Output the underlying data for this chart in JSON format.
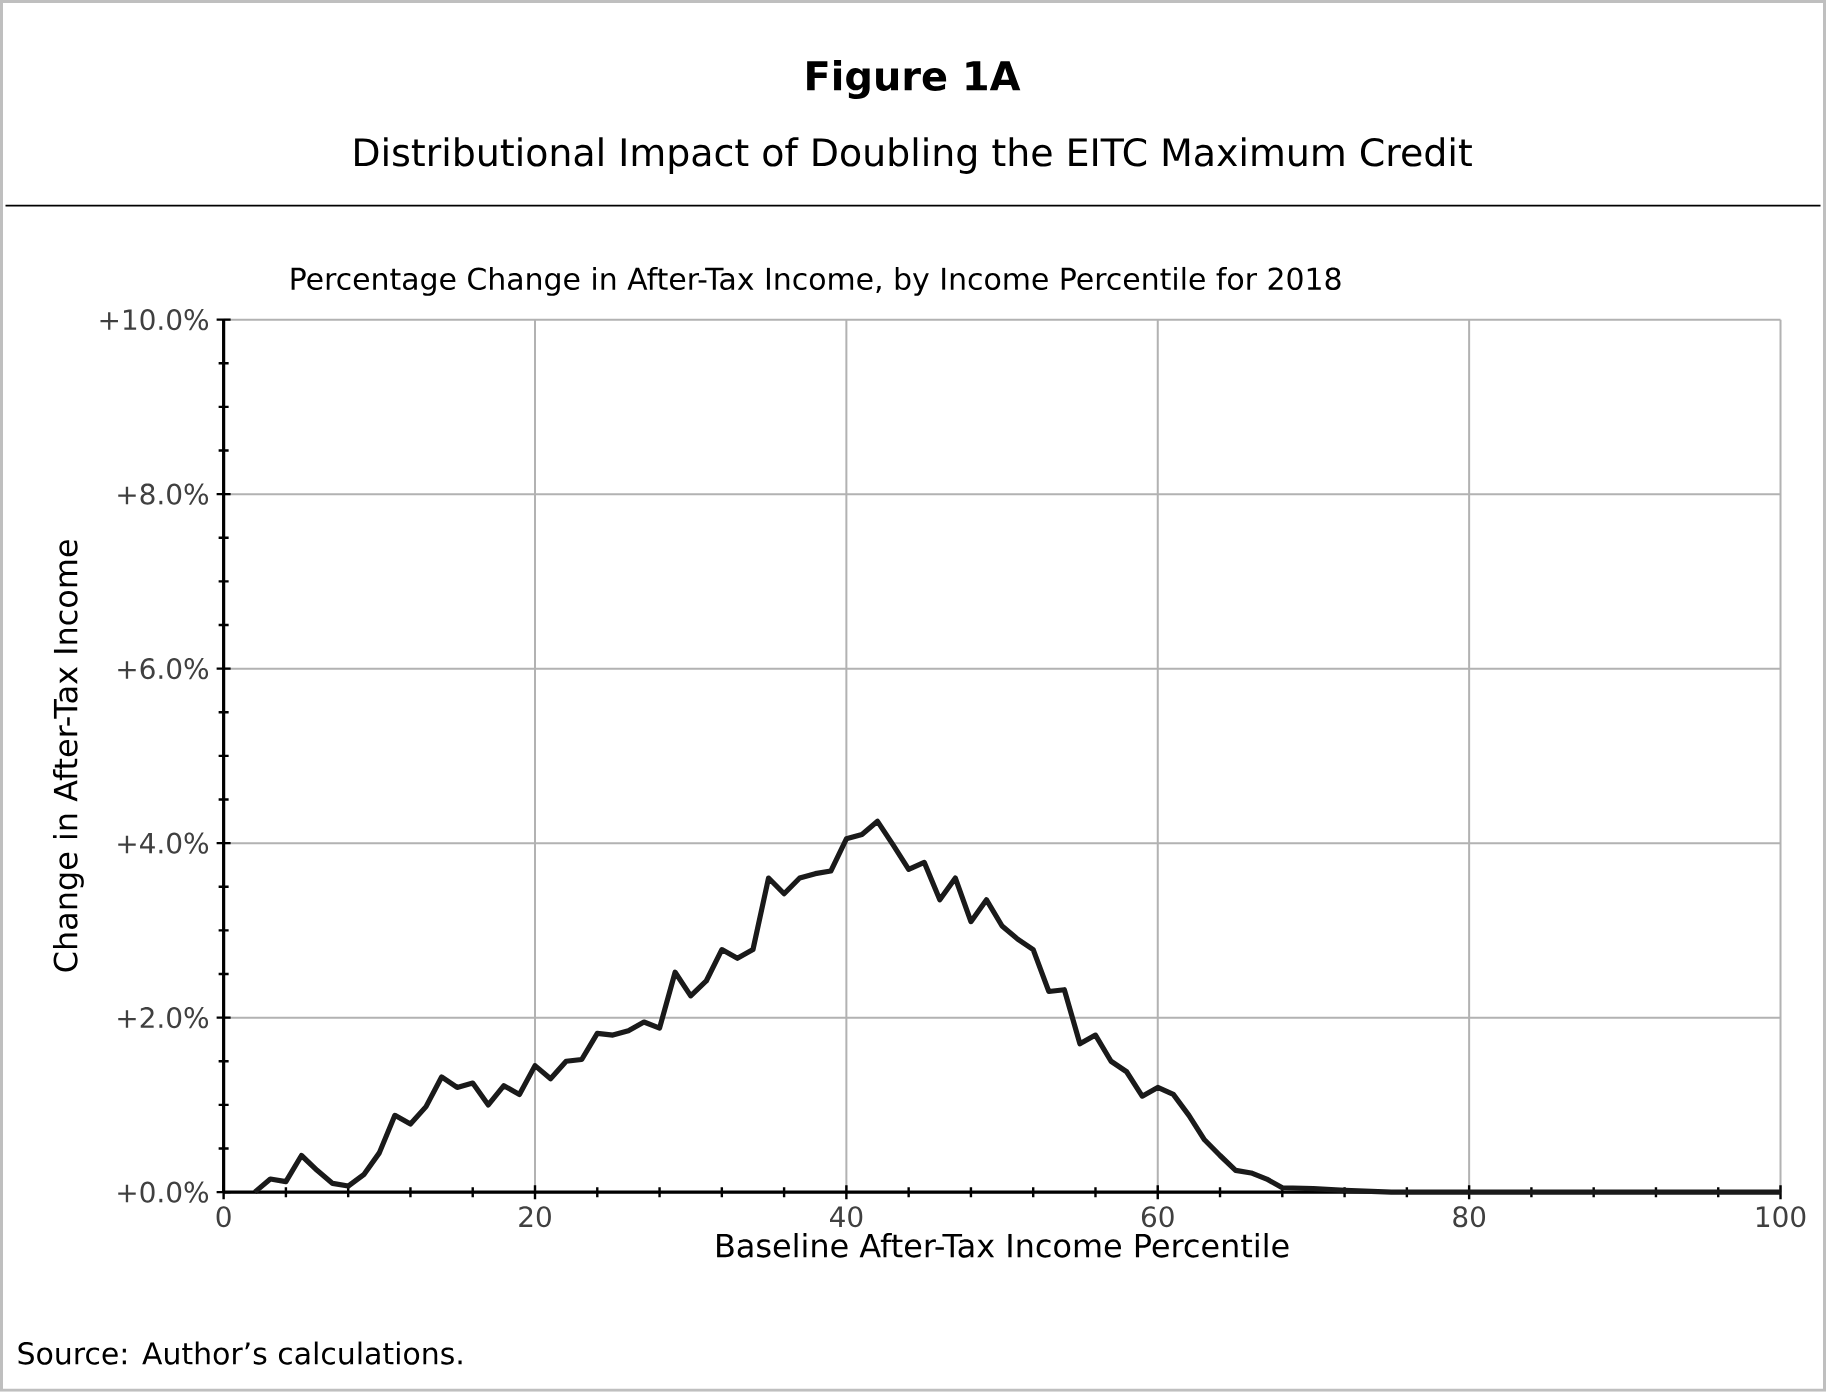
{
  "chart_data": {
    "type": "line",
    "title": "Figure 1A",
    "subtitle": "Distributional Impact of Doubling the EITC Maximum Credit",
    "annotations": [
      "Percentage Change in After-Tax Income, by Income Percentile for 2018",
      "Source: Author’s calculations."
    ],
    "xlabel": "Baseline After-Tax Income Percentile",
    "ylabel": "Change in After-Tax Income",
    "x": [
      2,
      3,
      4,
      5,
      6,
      7,
      8,
      9,
      10,
      11,
      12,
      13,
      14,
      15,
      16,
      17,
      18,
      19,
      20,
      21,
      22,
      23,
      24,
      25,
      26,
      27,
      28,
      29,
      30,
      31,
      32,
      33,
      34,
      35,
      36,
      37,
      38,
      39,
      40,
      41,
      42,
      43,
      44,
      45,
      46,
      47,
      48,
      49,
      50,
      51,
      52,
      53,
      54,
      55,
      56,
      57,
      58,
      59,
      60,
      61,
      62,
      63,
      64,
      65,
      66,
      67,
      68,
      70,
      72,
      75,
      80,
      90,
      100
    ],
    "series": [
      {
        "color": "#1a1a1a",
        "line_style": "solid",
        "values": [
          0.0,
          0.15,
          0.12,
          0.42,
          0.25,
          0.1,
          0.07,
          0.2,
          0.45,
          0.88,
          0.78,
          0.98,
          1.32,
          1.2,
          1.25,
          1.0,
          1.22,
          1.12,
          1.45,
          1.3,
          1.5,
          1.52,
          1.82,
          1.8,
          1.85,
          1.95,
          1.88,
          2.52,
          2.25,
          2.42,
          2.78,
          2.68,
          2.78,
          3.6,
          3.42,
          3.6,
          3.65,
          3.68,
          4.05,
          4.1,
          4.25,
          3.98,
          3.7,
          3.78,
          3.35,
          3.6,
          3.1,
          3.35,
          3.05,
          2.9,
          2.78,
          2.3,
          2.32,
          1.7,
          1.8,
          1.5,
          1.38,
          1.1,
          1.2,
          1.12,
          0.88,
          0.6,
          0.42,
          0.25,
          0.22,
          0.15,
          0.05,
          0.04,
          0.02,
          0.0,
          0.0,
          0.0,
          0.0
        ]
      }
    ],
    "xlim": [
      0,
      100
    ],
    "ylim": [
      0,
      10
    ],
    "xticks": [
      0,
      20,
      40,
      60,
      80,
      100
    ],
    "yticks": [
      {
        "value": 0,
        "label": "+0.0%"
      },
      {
        "value": 2,
        "label": "+2.0%"
      },
      {
        "value": 4,
        "label": "+4.0%"
      },
      {
        "value": 6,
        "label": "+6.0%"
      },
      {
        "value": 8,
        "label": "+8.0%"
      },
      {
        "value": 10,
        "label": "+10.0%"
      }
    ],
    "grid": true
  }
}
